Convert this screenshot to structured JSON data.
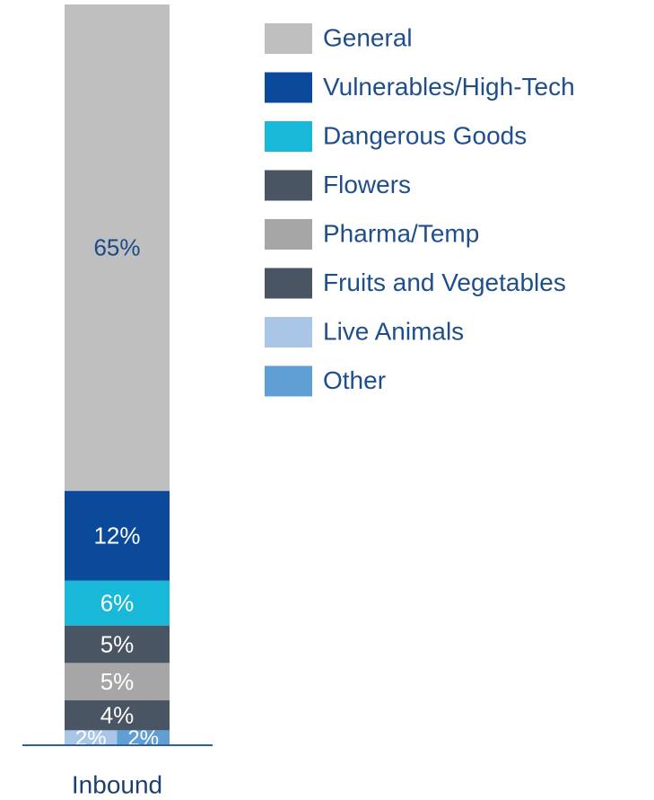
{
  "chart_data": {
    "type": "bar",
    "categories": [
      "Inbound"
    ],
    "series": [
      {
        "name": "General",
        "color": "#bfbfbf",
        "values": [
          65
        ],
        "value_labels": [
          "65%"
        ]
      },
      {
        "name": "Vulnerables/High-Tech",
        "color": "#0b4a9b",
        "values": [
          12
        ],
        "value_labels": [
          "12%"
        ]
      },
      {
        "name": "Dangerous Goods",
        "color": "#17b8d8",
        "values": [
          6
        ],
        "value_labels": [
          "6%"
        ]
      },
      {
        "name": "Flowers",
        "color": "#4a5563",
        "values": [
          5
        ],
        "value_labels": [
          "5%"
        ]
      },
      {
        "name": "Pharma/Temp",
        "color": "#a6a6a6",
        "values": [
          5
        ],
        "value_labels": [
          "5%"
        ]
      },
      {
        "name": "Fruits and Vegetables",
        "color": "#4a5563",
        "values": [
          4
        ],
        "value_labels": [
          "4%"
        ]
      },
      {
        "name": "Live Animals",
        "color": "#aac6e6",
        "values": [
          2
        ],
        "value_labels": [
          "2%"
        ]
      },
      {
        "name": "Other",
        "color": "#5f9fd4",
        "values": [
          2
        ],
        "value_labels": [
          "2%"
        ]
      }
    ]
  }
}
